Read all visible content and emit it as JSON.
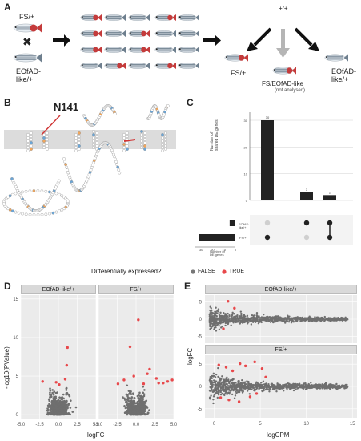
{
  "panelA": {
    "letter": "A",
    "parent_top": "FS/+",
    "cross": "✖",
    "parent_bottom": "EOfAD-\nlike/+",
    "center_top": "+/+",
    "out_left": "FS/+",
    "out_mid": "FS/EOfAD-like",
    "out_mid_note": "(not analysed)",
    "out_right": "EOfAD-\nlike/+",
    "colors": {
      "fish_body": "#6e7f8e",
      "fish_red": "#c43b3b",
      "arrow": "#111",
      "arrow_grey": "#b5b5b5"
    }
  },
  "panelB": {
    "letter": "B",
    "callout": "N141"
  },
  "panelC": {
    "letter": "C",
    "ylabel": "Number of\nshared DE genes",
    "sets": [
      "EOfAD-\nlike/+",
      "FS/+"
    ],
    "set_axis_label": "Number of\nDE genes",
    "set_axis_ticks": [
      "30",
      "20",
      "10",
      "0"
    ],
    "y_ticks": [
      "30",
      "20",
      "10",
      "0"
    ],
    "chart_data": {
      "type": "bar",
      "categories": [
        "FS/+ only",
        "EOfAD-like/+ only",
        "FS/+ & EOfAD-like/+"
      ],
      "values": [
        30,
        3,
        2
      ],
      "value_labels": [
        "30",
        "3",
        "2"
      ],
      "ylim": [
        0,
        33
      ],
      "set_sizes": {
        "EOfAD-like/+": 5,
        "FS/+": 32
      }
    }
  },
  "legend": {
    "title": "Differentially expressed?",
    "items": [
      {
        "label": "FALSE",
        "color": "#777777"
      },
      {
        "label": "TRUE",
        "color": "#e8484b"
      }
    ]
  },
  "panelD": {
    "letter": "D",
    "facets": [
      "EOfAD-like/+",
      "FS/+"
    ],
    "xlabel": "logFC",
    "ylabel": "-log10(PValue)",
    "x_ticks": [
      "-5.0",
      "-2.5",
      "0.0",
      "2.5",
      "5.0"
    ],
    "y_ticks": [
      "15",
      "10",
      "5",
      "0"
    ],
    "chart_data": {
      "type": "scatter",
      "xlim": [
        -5,
        5
      ],
      "ylim": [
        -0.5,
        15.5
      ],
      "series": [
        {
          "name": "EOfAD-like/+",
          "points": [
            [
              1.2,
              8.7
            ],
            [
              1.1,
              6.4
            ],
            [
              0.9,
              4.6
            ],
            [
              -0.3,
              4.2
            ],
            [
              0.1,
              3.9
            ],
            [
              -2.1,
              4.3
            ]
          ]
        },
        {
          "name": "FS/+",
          "points": [
            [
              0.3,
              12.3
            ],
            [
              -0.8,
              8.8
            ],
            [
              1.8,
              5.9
            ],
            [
              1.5,
              5.3
            ],
            [
              -1.6,
              4.5
            ],
            [
              2.7,
              4.7
            ],
            [
              4.2,
              4.3
            ],
            [
              4.8,
              4.5
            ],
            [
              3.0,
              4.1
            ],
            [
              -0.3,
              5.0
            ],
            [
              1.0,
              4.0
            ],
            [
              -2.4,
              4.0
            ],
            [
              3.6,
              4.1
            ]
          ]
        }
      ]
    }
  },
  "panelE": {
    "letter": "E",
    "facets": [
      "EOfAD-like/+",
      "FS/+"
    ],
    "xlabel": "logCPM",
    "ylabel": "logFC",
    "x_ticks": [
      "0",
      "5",
      "10",
      "15"
    ],
    "y_ticks_top": [
      "5",
      "0",
      "-5"
    ],
    "y_ticks_bottom": [
      "5",
      "0",
      "-5"
    ],
    "chart_data": {
      "type": "scatter",
      "xlim": [
        -1,
        15.5
      ],
      "ylim": [
        -7,
        7
      ],
      "series": [
        {
          "name": "EOfAD-like/+",
          "points": [
            [
              1.5,
              5.2
            ],
            [
              2.2,
              3.2
            ],
            [
              1.0,
              -2.8
            ]
          ]
        },
        {
          "name": "FS/+",
          "points": [
            [
              0.5,
              4.8
            ],
            [
              1.3,
              4.3
            ],
            [
              2.0,
              3.5
            ],
            [
              2.8,
              5.1
            ],
            [
              3.4,
              4.6
            ],
            [
              4.4,
              5.5
            ],
            [
              5.2,
              4.0
            ],
            [
              3.9,
              -2.3
            ],
            [
              0.7,
              -2.5
            ],
            [
              1.6,
              -3.0
            ],
            [
              2.7,
              -3.4
            ],
            [
              4.6,
              -1.6
            ],
            [
              5.6,
              2.1
            ]
          ]
        }
      ]
    }
  }
}
